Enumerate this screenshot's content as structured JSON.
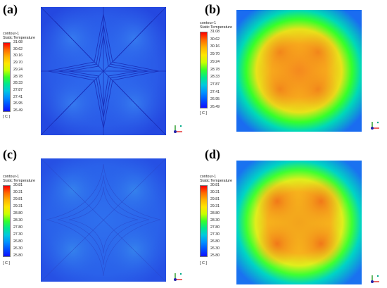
{
  "panels": [
    {
      "label": "(a)",
      "legend": {
        "name": "contour-1",
        "quantity": "Static Temperature",
        "ticks": [
          "31.08",
          "30.62",
          "30.16",
          "29.70",
          "29.24",
          "28.78",
          "28.33",
          "27.87",
          "27.41",
          "26.95",
          "26.49"
        ],
        "unit": "[ C ]"
      }
    },
    {
      "label": "(b)",
      "legend": {
        "name": "contour-1",
        "quantity": "Static Temperature",
        "ticks": [
          "31.08",
          "30.62",
          "30.16",
          "29.70",
          "29.24",
          "28.78",
          "28.33",
          "27.87",
          "27.41",
          "26.95",
          "26.49"
        ],
        "unit": "[ C ]"
      }
    },
    {
      "label": "(c)",
      "legend": {
        "name": "contour-1",
        "quantity": "Static Temperature",
        "ticks": [
          "30.81",
          "30.31",
          "29.81",
          "29.31",
          "28.80",
          "28.30",
          "27.80",
          "27.30",
          "26.80",
          "26.30",
          "25.80"
        ],
        "unit": "[ C ]"
      }
    },
    {
      "label": "(d)",
      "legend": {
        "name": "contour-1",
        "quantity": "Static Temperature",
        "ticks": [
          "30.81",
          "30.31",
          "29.81",
          "29.31",
          "28.80",
          "28.30",
          "27.80",
          "27.30",
          "26.80",
          "26.30",
          "25.80"
        ],
        "unit": "[ C ]"
      }
    }
  ],
  "colors": {
    "colormap": [
      "#ff0000",
      "#ff6a00",
      "#ffb400",
      "#ffe600",
      "#c8ff00",
      "#36ff2a",
      "#00e890",
      "#00c8e0",
      "#0090ff",
      "#0050ff",
      "#1010ff"
    ],
    "plate_blue": "#2a55e8",
    "hot_orange": "#f58a1e"
  }
}
